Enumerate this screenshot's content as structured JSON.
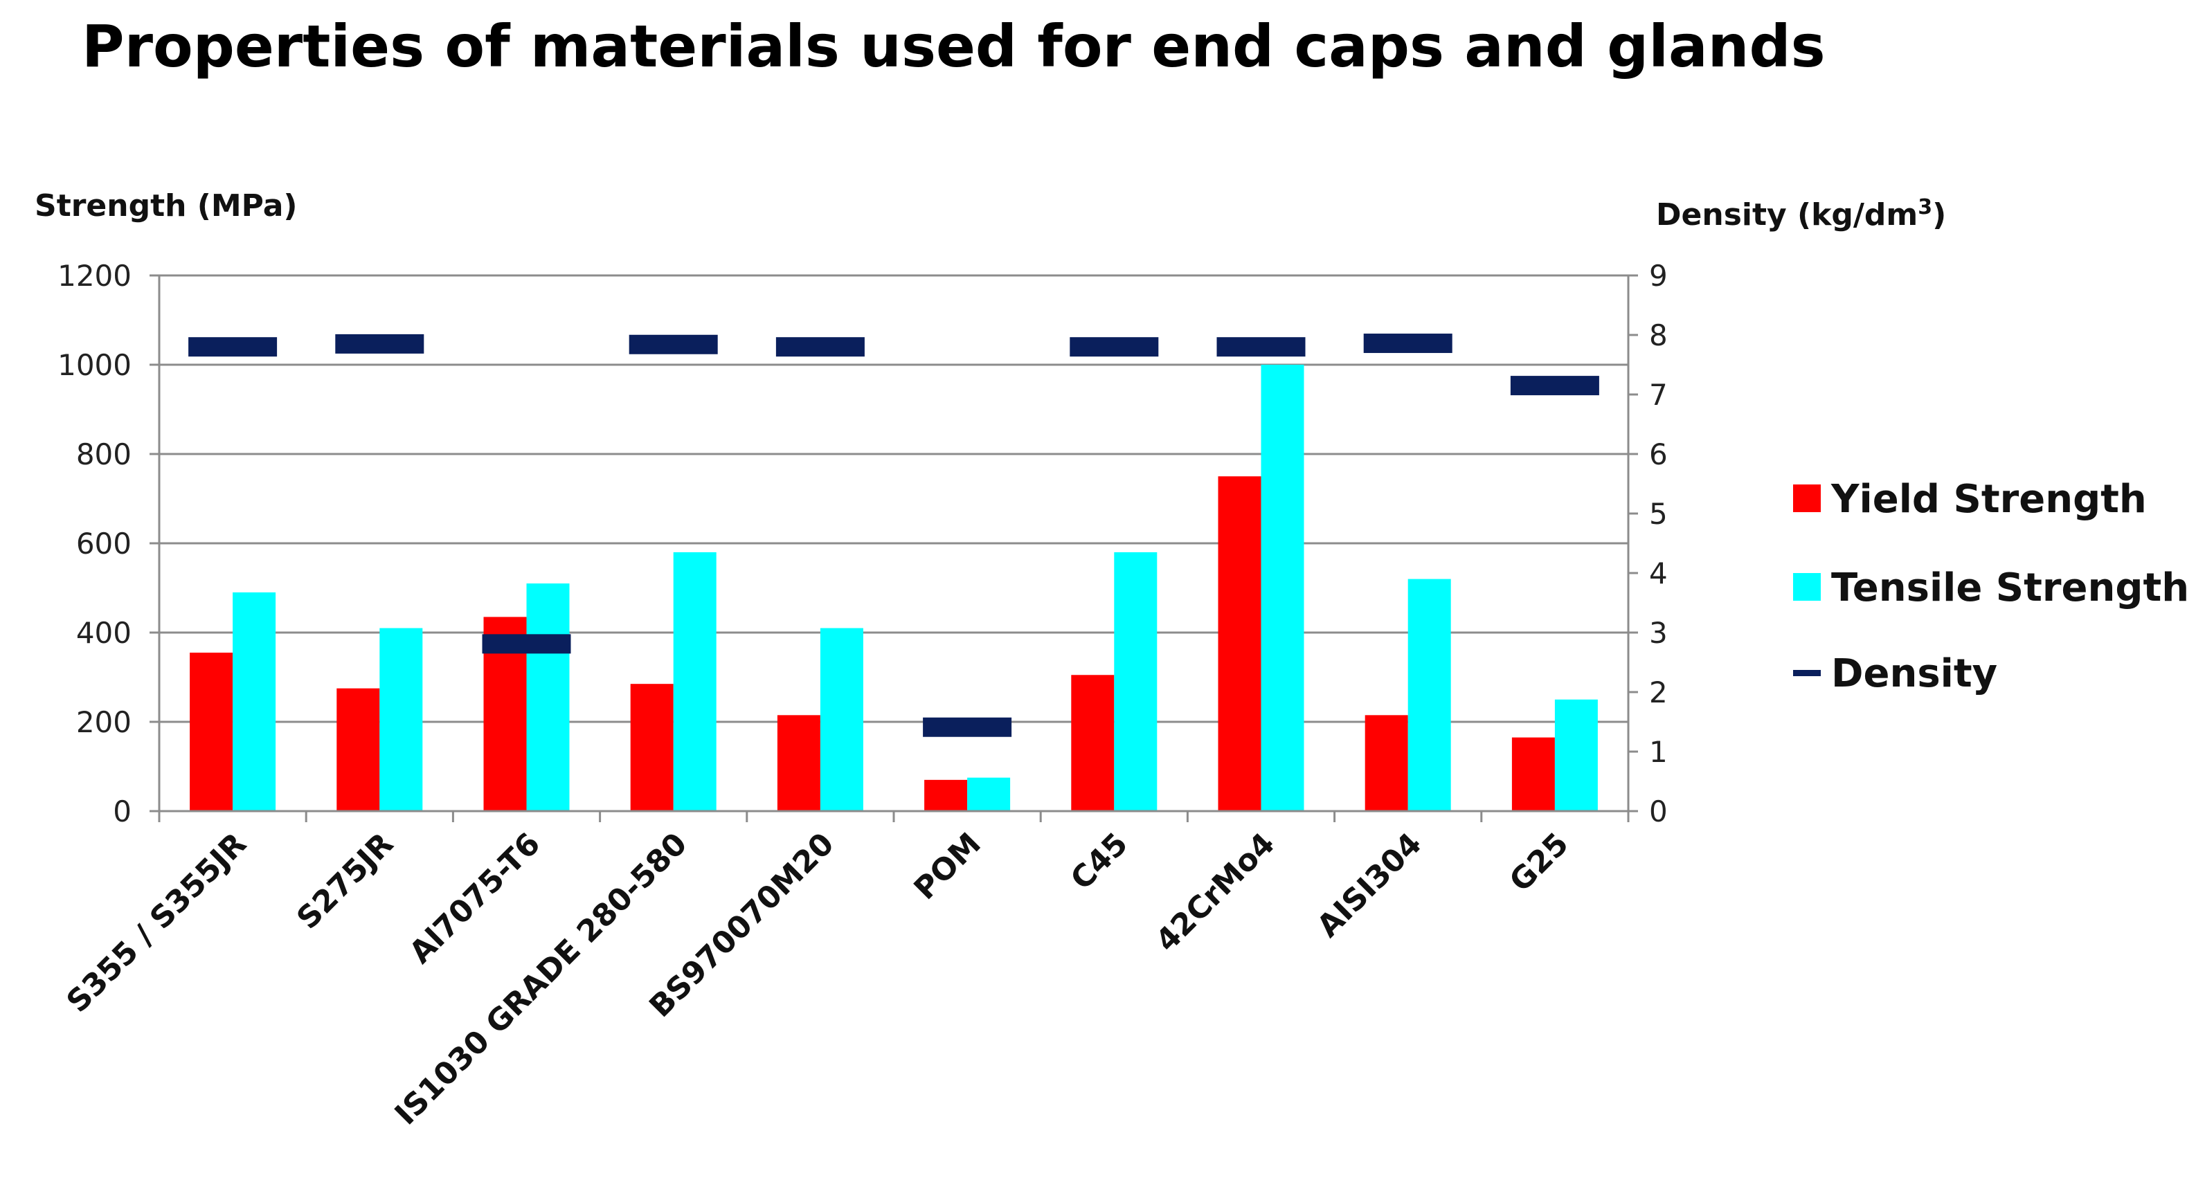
{
  "chart_data": {
    "type": "bar",
    "title": "Properties of materials used for end caps and glands",
    "ylabel": "Strength (MPa)",
    "y2label": "Density (kg/dm",
    "y2label_sup": "3",
    "y2label_close": ")",
    "ylim": [
      0,
      1200
    ],
    "y2lim": [
      0,
      9
    ],
    "yticks": [
      0,
      200,
      400,
      600,
      800,
      1000,
      1200
    ],
    "y2ticks": [
      0,
      1,
      2,
      3,
      4,
      5,
      6,
      7,
      8,
      9
    ],
    "grid": true,
    "legend_position": "right",
    "categories": [
      "S355 / S355JR",
      "S275JR",
      "Al7075-T6",
      "IS1030 GRADE 280-580",
      "BS970070M20",
      "POM",
      "C45",
      "42CrMo4",
      "AISI304",
      "G25"
    ],
    "series": [
      {
        "name": "Yield Strength",
        "kind": "bar",
        "axis": "left",
        "color": "#ff0000",
        "values": [
          355,
          275,
          435,
          285,
          215,
          70,
          305,
          750,
          215,
          165
        ]
      },
      {
        "name": "Tensile Strength",
        "kind": "bar",
        "axis": "left",
        "color": "#00ffff",
        "values": [
          490,
          410,
          510,
          580,
          410,
          75,
          580,
          1000,
          520,
          250
        ]
      },
      {
        "name": "Density",
        "kind": "marker",
        "axis": "right",
        "color": "#0a1f5c",
        "values": [
          7.8,
          7.85,
          2.81,
          7.84,
          7.8,
          1.41,
          7.8,
          7.8,
          7.86,
          7.15
        ]
      }
    ]
  }
}
